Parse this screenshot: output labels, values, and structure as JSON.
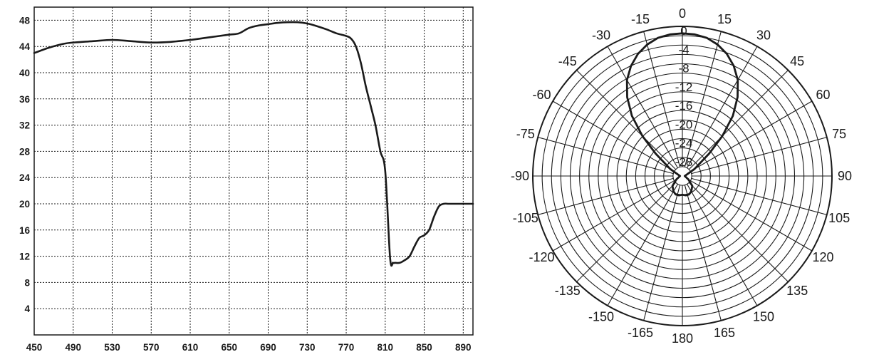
{
  "chart_data": [
    {
      "type": "line",
      "title": "",
      "xlabel": "",
      "ylabel": "",
      "xlim": [
        450,
        900
      ],
      "ylim": [
        0,
        50
      ],
      "grid": true,
      "x_ticks": [
        "450",
        "490",
        "530",
        "570",
        "610",
        "650",
        "690",
        "730",
        "770",
        "810",
        "850",
        "890"
      ],
      "y_ticks": [
        "4",
        "8",
        "12",
        "16",
        "20",
        "24",
        "28",
        "32",
        "36",
        "40",
        "44",
        "48"
      ],
      "series": [
        {
          "x": [
            450,
            465,
            480,
            490,
            510,
            530,
            550,
            570,
            590,
            610,
            630,
            650,
            660,
            670,
            680,
            690,
            700,
            710,
            720,
            730,
            740,
            750,
            760,
            770,
            775,
            780,
            785,
            790,
            795,
            800,
            805,
            810,
            815,
            818,
            820,
            825,
            830,
            835,
            840,
            845,
            850,
            855,
            860,
            865,
            870,
            875,
            880,
            890,
            900
          ],
          "y": [
            43.0,
            43.8,
            44.4,
            44.6,
            44.8,
            45.0,
            44.8,
            44.6,
            44.7,
            45.0,
            45.4,
            45.8,
            46.0,
            46.8,
            47.2,
            47.4,
            47.6,
            47.7,
            47.7,
            47.5,
            47.1,
            46.6,
            46.0,
            45.6,
            45.2,
            44.0,
            41.5,
            38.0,
            35.0,
            32.0,
            28.0,
            25.0,
            11.8,
            11.0,
            11.0,
            11.0,
            11.4,
            12.0,
            13.5,
            14.8,
            15.2,
            16.0,
            18.0,
            19.6,
            20.0,
            20.0,
            20.0,
            20.0,
            20.0
          ],
          "color": "#1a1a1a"
        }
      ]
    },
    {
      "type": "polar",
      "title": "",
      "angle_labels": [
        "0",
        "15",
        "30",
        "45",
        "60",
        "75",
        "90",
        "105",
        "120",
        "135",
        "150",
        "165",
        "180",
        "-165",
        "-150",
        "-135",
        "-120",
        "-105",
        "-90",
        "-75",
        "-60",
        "-45",
        "-30",
        "-15"
      ],
      "angle_values": [
        0,
        15,
        30,
        45,
        60,
        75,
        90,
        105,
        120,
        135,
        150,
        165,
        180,
        -165,
        -150,
        -135,
        -120,
        -105,
        -90,
        -75,
        -60,
        -45,
        -30,
        -15
      ],
      "radial_labels": [
        "0",
        "-4",
        "-8",
        "-12",
        "-16",
        "-20",
        "-24",
        "-28"
      ],
      "radial_values": [
        0,
        -4,
        -8,
        -12,
        -16,
        -20,
        -24,
        -28
      ],
      "rlim": [
        -32,
        0
      ],
      "radial_rings": 16,
      "grid": true,
      "series": [
        {
          "angle": [
            0,
            5,
            10,
            15,
            20,
            25,
            30,
            35,
            40,
            45,
            50,
            60,
            90,
            120,
            135,
            150,
            160,
            170,
            180,
            -170,
            -160,
            -150,
            -135,
            -120,
            -90,
            -60,
            -50,
            -45,
            -40,
            -35,
            -30,
            -25,
            -20,
            -15,
            -10,
            -5,
            0
          ],
          "value": [
            -1.5,
            -1.6,
            -2.0,
            -2.9,
            -4.2,
            -6.0,
            -8.3,
            -11.4,
            -15.2,
            -19.9,
            -24.5,
            -29.0,
            -31.5,
            -30.5,
            -29.0,
            -28.2,
            -27.8,
            -27.8,
            -28.0,
            -27.8,
            -27.8,
            -28.2,
            -29.0,
            -30.5,
            -31.5,
            -29.0,
            -24.5,
            -19.9,
            -15.2,
            -11.4,
            -8.3,
            -6.0,
            -4.2,
            -2.9,
            -2.0,
            -1.6,
            -1.5
          ],
          "color": "#1a1a1a"
        }
      ]
    }
  ]
}
